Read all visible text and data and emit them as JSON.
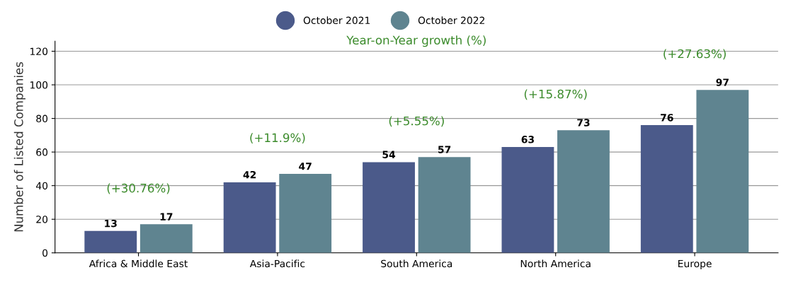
{
  "chart_data": {
    "type": "bar",
    "ylabel": "Number of Listed Companies",
    "categories": [
      "Africa & Middle East",
      "Asia-Pacific",
      "South America",
      "North America",
      "Europe"
    ],
    "series": [
      {
        "name": "October 2021",
        "color": "#4b5a8a",
        "values": [
          13,
          42,
          54,
          63,
          76
        ]
      },
      {
        "name": "October 2022",
        "color": "#5f8490",
        "values": [
          17,
          47,
          57,
          73,
          97
        ]
      }
    ],
    "data_labels": true,
    "annotations": [
      "Year-on-Year growth (%)",
      "(+30.76%)",
      "(+11.9%)",
      "(+5.55%)",
      "(+15.87%)",
      "(+27.63%)"
    ],
    "ylim": [
      0,
      126
    ],
    "yticks": [
      0,
      20,
      40,
      60,
      80,
      100,
      120
    ],
    "grid": "y",
    "legend": "top",
    "marker": "circle"
  }
}
